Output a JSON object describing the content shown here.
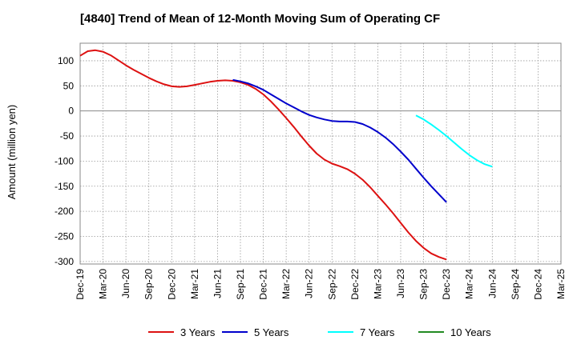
{
  "chart_data": {
    "type": "line",
    "title": "[4840]  Trend of Mean of 12-Month Moving Sum of Operating CF",
    "xlabel": "",
    "ylabel": "Amount (million yen)",
    "ylim": [
      -305,
      135
    ],
    "yticks": [
      100,
      50,
      0,
      -50,
      -100,
      -150,
      -200,
      -250,
      -300
    ],
    "ytick_labels": [
      "100",
      "50",
      "0",
      "-50",
      "-100",
      "-150",
      "-200",
      "-250",
      "-300"
    ],
    "xtick_labels": [
      "Dec-19",
      "Mar-20",
      "Jun-20",
      "Sep-20",
      "Dec-20",
      "Mar-21",
      "Jun-21",
      "Sep-21",
      "Dec-21",
      "Mar-22",
      "Jun-22",
      "Sep-22",
      "Dec-22",
      "Mar-23",
      "Jun-23",
      "Sep-23",
      "Dec-23",
      "Mar-24",
      "Jun-24",
      "Sep-24",
      "Dec-24",
      "Mar-25"
    ],
    "grid": true,
    "legend": "bottom",
    "series": [
      {
        "name": "3 Years",
        "color": "#dd1111",
        "start_index": 0,
        "values": [
          110,
          119,
          121,
          118,
          111,
          101,
          91,
          82,
          74,
          66,
          59,
          53,
          49,
          48,
          49,
          52,
          55,
          58,
          60,
          61,
          60,
          57,
          52,
          44,
          33,
          19,
          3,
          -14,
          -32,
          -51,
          -69,
          -85,
          -97,
          -105,
          -110,
          -116,
          -125,
          -137,
          -152,
          -169,
          -186,
          -204,
          -223,
          -242,
          -259,
          -273,
          -284,
          -291,
          -296
        ]
      },
      {
        "name": "5 Years",
        "color": "#0000cc",
        "start_index": 20,
        "values": [
          62,
          59,
          55,
          49,
          42,
          33,
          24,
          15,
          7,
          -1,
          -8,
          -13,
          -17,
          -20,
          -21,
          -21,
          -22,
          -26,
          -33,
          -42,
          -53,
          -66,
          -81,
          -97,
          -115,
          -133,
          -150,
          -166,
          -182
        ]
      },
      {
        "name": "7 Years",
        "color": "#00ffff",
        "start_index": 44,
        "values": [
          -9,
          -17,
          -27,
          -38,
          -50,
          -63,
          -76,
          -88,
          -98,
          -106,
          -111
        ]
      },
      {
        "name": "10 Years",
        "color": "#228B22",
        "start_index": 0,
        "values": []
      }
    ]
  }
}
